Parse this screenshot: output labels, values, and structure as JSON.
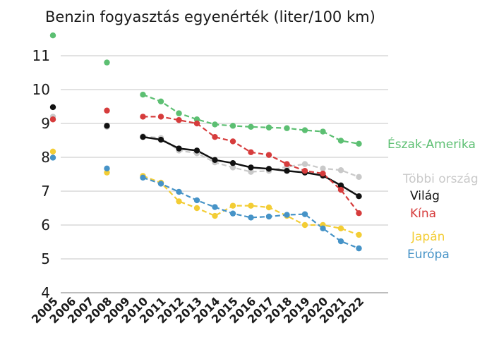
{
  "chart_data": {
    "type": "line",
    "title": "Benzin fogyasztás egyenérték (liter/100 km)",
    "xlabel": "",
    "ylabel": "",
    "x": [
      "2005",
      "2006",
      "2007",
      "2008",
      "2009",
      "2010",
      "2011",
      "2012",
      "2013",
      "2014",
      "2015",
      "2016",
      "2017",
      "2018",
      "2019",
      "2020",
      "2021",
      "2022"
    ],
    "yticks": [
      "4",
      "5",
      "6",
      "7",
      "8",
      "9",
      "10",
      "11"
    ],
    "ylim": [
      4,
      11.5
    ],
    "grid": "horizontal",
    "legend": "inline labels at right end of each series",
    "series": [
      {
        "name": "Észak-Amerika",
        "color": "#5cbf72",
        "style": "dashed",
        "values": [
          11.6,
          null,
          null,
          10.8,
          null,
          9.85,
          9.65,
          9.3,
          9.12,
          8.97,
          8.93,
          8.9,
          8.88,
          8.86,
          8.8,
          8.76,
          8.49,
          8.4
        ]
      },
      {
        "name": "Többi ország",
        "color": "#c9c9c9",
        "style": "dashed",
        "values": [
          9.2,
          null,
          null,
          8.9,
          null,
          8.62,
          8.57,
          8.2,
          8.12,
          7.85,
          7.7,
          7.57,
          7.6,
          7.72,
          7.8,
          7.67,
          7.62,
          7.42
        ]
      },
      {
        "name": "Világ",
        "color": "#111111",
        "style": "solid",
        "values": [
          9.48,
          null,
          null,
          8.93,
          null,
          8.6,
          8.52,
          8.26,
          8.2,
          7.92,
          7.83,
          7.7,
          7.66,
          7.6,
          7.55,
          7.46,
          7.17,
          6.85
        ]
      },
      {
        "name": "Kína",
        "color": "#d63c3c",
        "style": "dashed",
        "values": [
          9.12,
          null,
          null,
          9.38,
          null,
          9.2,
          9.2,
          9.1,
          9.0,
          8.6,
          8.47,
          8.15,
          8.07,
          7.8,
          7.6,
          7.52,
          7.04,
          6.35
        ]
      },
      {
        "name": "Japán",
        "color": "#f3cd35",
        "style": "dashed",
        "values": [
          8.17,
          null,
          null,
          7.55,
          null,
          7.45,
          7.25,
          6.7,
          6.5,
          6.27,
          6.57,
          6.57,
          6.52,
          6.27,
          6.0,
          6.0,
          5.9,
          5.71
        ]
      },
      {
        "name": "Európa",
        "color": "#4693c7",
        "style": "dashed",
        "values": [
          7.99,
          null,
          null,
          7.67,
          null,
          7.4,
          7.22,
          6.98,
          6.73,
          6.53,
          6.34,
          6.22,
          6.25,
          6.3,
          6.32,
          5.9,
          5.52,
          5.31
        ]
      }
    ]
  }
}
